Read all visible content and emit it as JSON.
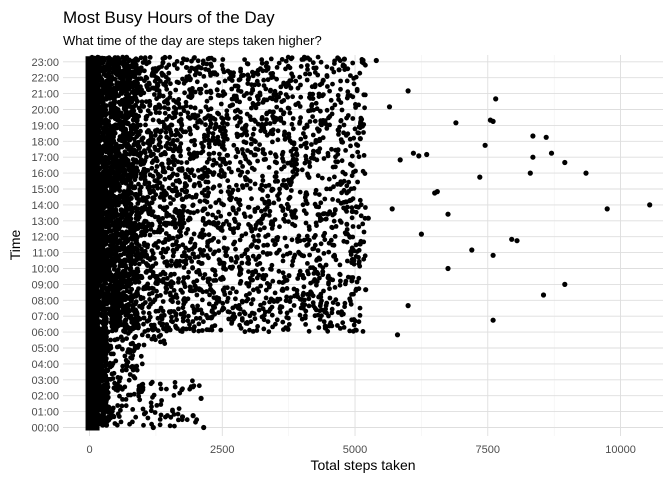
{
  "chart_data": {
    "type": "scatter",
    "title": "Most Busy Hours of the Day",
    "subtitle": "What  time of the day are steps taken higher?",
    "xlabel": "Total steps taken",
    "ylabel": "Time",
    "xlim": [
      -500,
      10800
    ],
    "xticks": [
      0,
      2500,
      5000,
      7500,
      10000
    ],
    "xtick_labels": [
      "0",
      "2500",
      "5000",
      "7500",
      "10000"
    ],
    "y_categories": [
      "00:00",
      "01:00",
      "02:00",
      "03:00",
      "04:00",
      "05:00",
      "06:00",
      "07:00",
      "08:00",
      "09:00",
      "10:00",
      "11:00",
      "12:00",
      "13:00",
      "14:00",
      "15:00",
      "16:00",
      "17:00",
      "18:00",
      "19:00",
      "20:00",
      "21:00",
      "22:00",
      "23:00"
    ],
    "grid": true,
    "legend": "none",
    "point_color": "#000000",
    "max_steps_by_hour": [
      2100,
      1800,
      2100,
      900,
      1000,
      1500,
      5800,
      7600,
      8600,
      9000,
      8100,
      8600,
      8000,
      6800,
      10550,
      6600,
      8400,
      9400,
      8800,
      7700,
      7700,
      7700,
      5500,
      5400
    ],
    "points": [
      {
        "x": 10550,
        "y": "14:00"
      },
      {
        "x": 9750,
        "y": "13:45"
      },
      {
        "x": 9350,
        "y": "16:00"
      },
      {
        "x": 8950,
        "y": "16:40"
      },
      {
        "x": 8700,
        "y": "17:15"
      },
      {
        "x": 8600,
        "y": "18:15"
      },
      {
        "x": 8350,
        "y": "18:20"
      },
      {
        "x": 8300,
        "y": "16:00"
      },
      {
        "x": 8350,
        "y": "17:00"
      },
      {
        "x": 8950,
        "y": "09:00"
      },
      {
        "x": 8550,
        "y": "08:20"
      },
      {
        "x": 8050,
        "y": "11:45"
      },
      {
        "x": 7950,
        "y": "11:50"
      },
      {
        "x": 7600,
        "y": "06:45"
      },
      {
        "x": 7650,
        "y": "20:40"
      },
      {
        "x": 7600,
        "y": "19:15"
      },
      {
        "x": 7550,
        "y": "19:20"
      },
      {
        "x": 7450,
        "y": "17:45"
      },
      {
        "x": 7350,
        "y": "15:45"
      },
      {
        "x": 7200,
        "y": "11:10"
      },
      {
        "x": 7600,
        "y": "10:50"
      },
      {
        "x": 6750,
        "y": "10:00"
      },
      {
        "x": 6750,
        "y": "13:25"
      },
      {
        "x": 6900,
        "y": "19:10"
      },
      {
        "x": 6550,
        "y": "14:50"
      },
      {
        "x": 6500,
        "y": "14:45"
      },
      {
        "x": 6350,
        "y": "17:10"
      },
      {
        "x": 6200,
        "y": "17:05"
      },
      {
        "x": 6100,
        "y": "17:15"
      },
      {
        "x": 6250,
        "y": "12:10"
      },
      {
        "x": 6000,
        "y": "21:10"
      },
      {
        "x": 6000,
        "y": "07:40"
      },
      {
        "x": 5800,
        "y": "05:50"
      },
      {
        "x": 5700,
        "y": "13:45"
      },
      {
        "x": 5850,
        "y": "16:50"
      },
      {
        "x": 5650,
        "y": "20:10"
      },
      {
        "x": 5400,
        "y": "23:05"
      },
      {
        "x": 5250,
        "y": "13:10"
      },
      {
        "x": 5200,
        "y": "08:40"
      },
      {
        "x": 5100,
        "y": "18:10"
      },
      {
        "x": 4800,
        "y": "23:10"
      },
      {
        "x": 4700,
        "y": "22:30"
      },
      {
        "x": 4400,
        "y": "21:50"
      },
      {
        "x": 2100,
        "y": "01:50"
      },
      {
        "x": 1950,
        "y": "00:45"
      },
      {
        "x": 1750,
        "y": "00:40"
      },
      {
        "x": 2150,
        "y": "00:00"
      },
      {
        "x": 1200,
        "y": "00:00"
      }
    ]
  }
}
